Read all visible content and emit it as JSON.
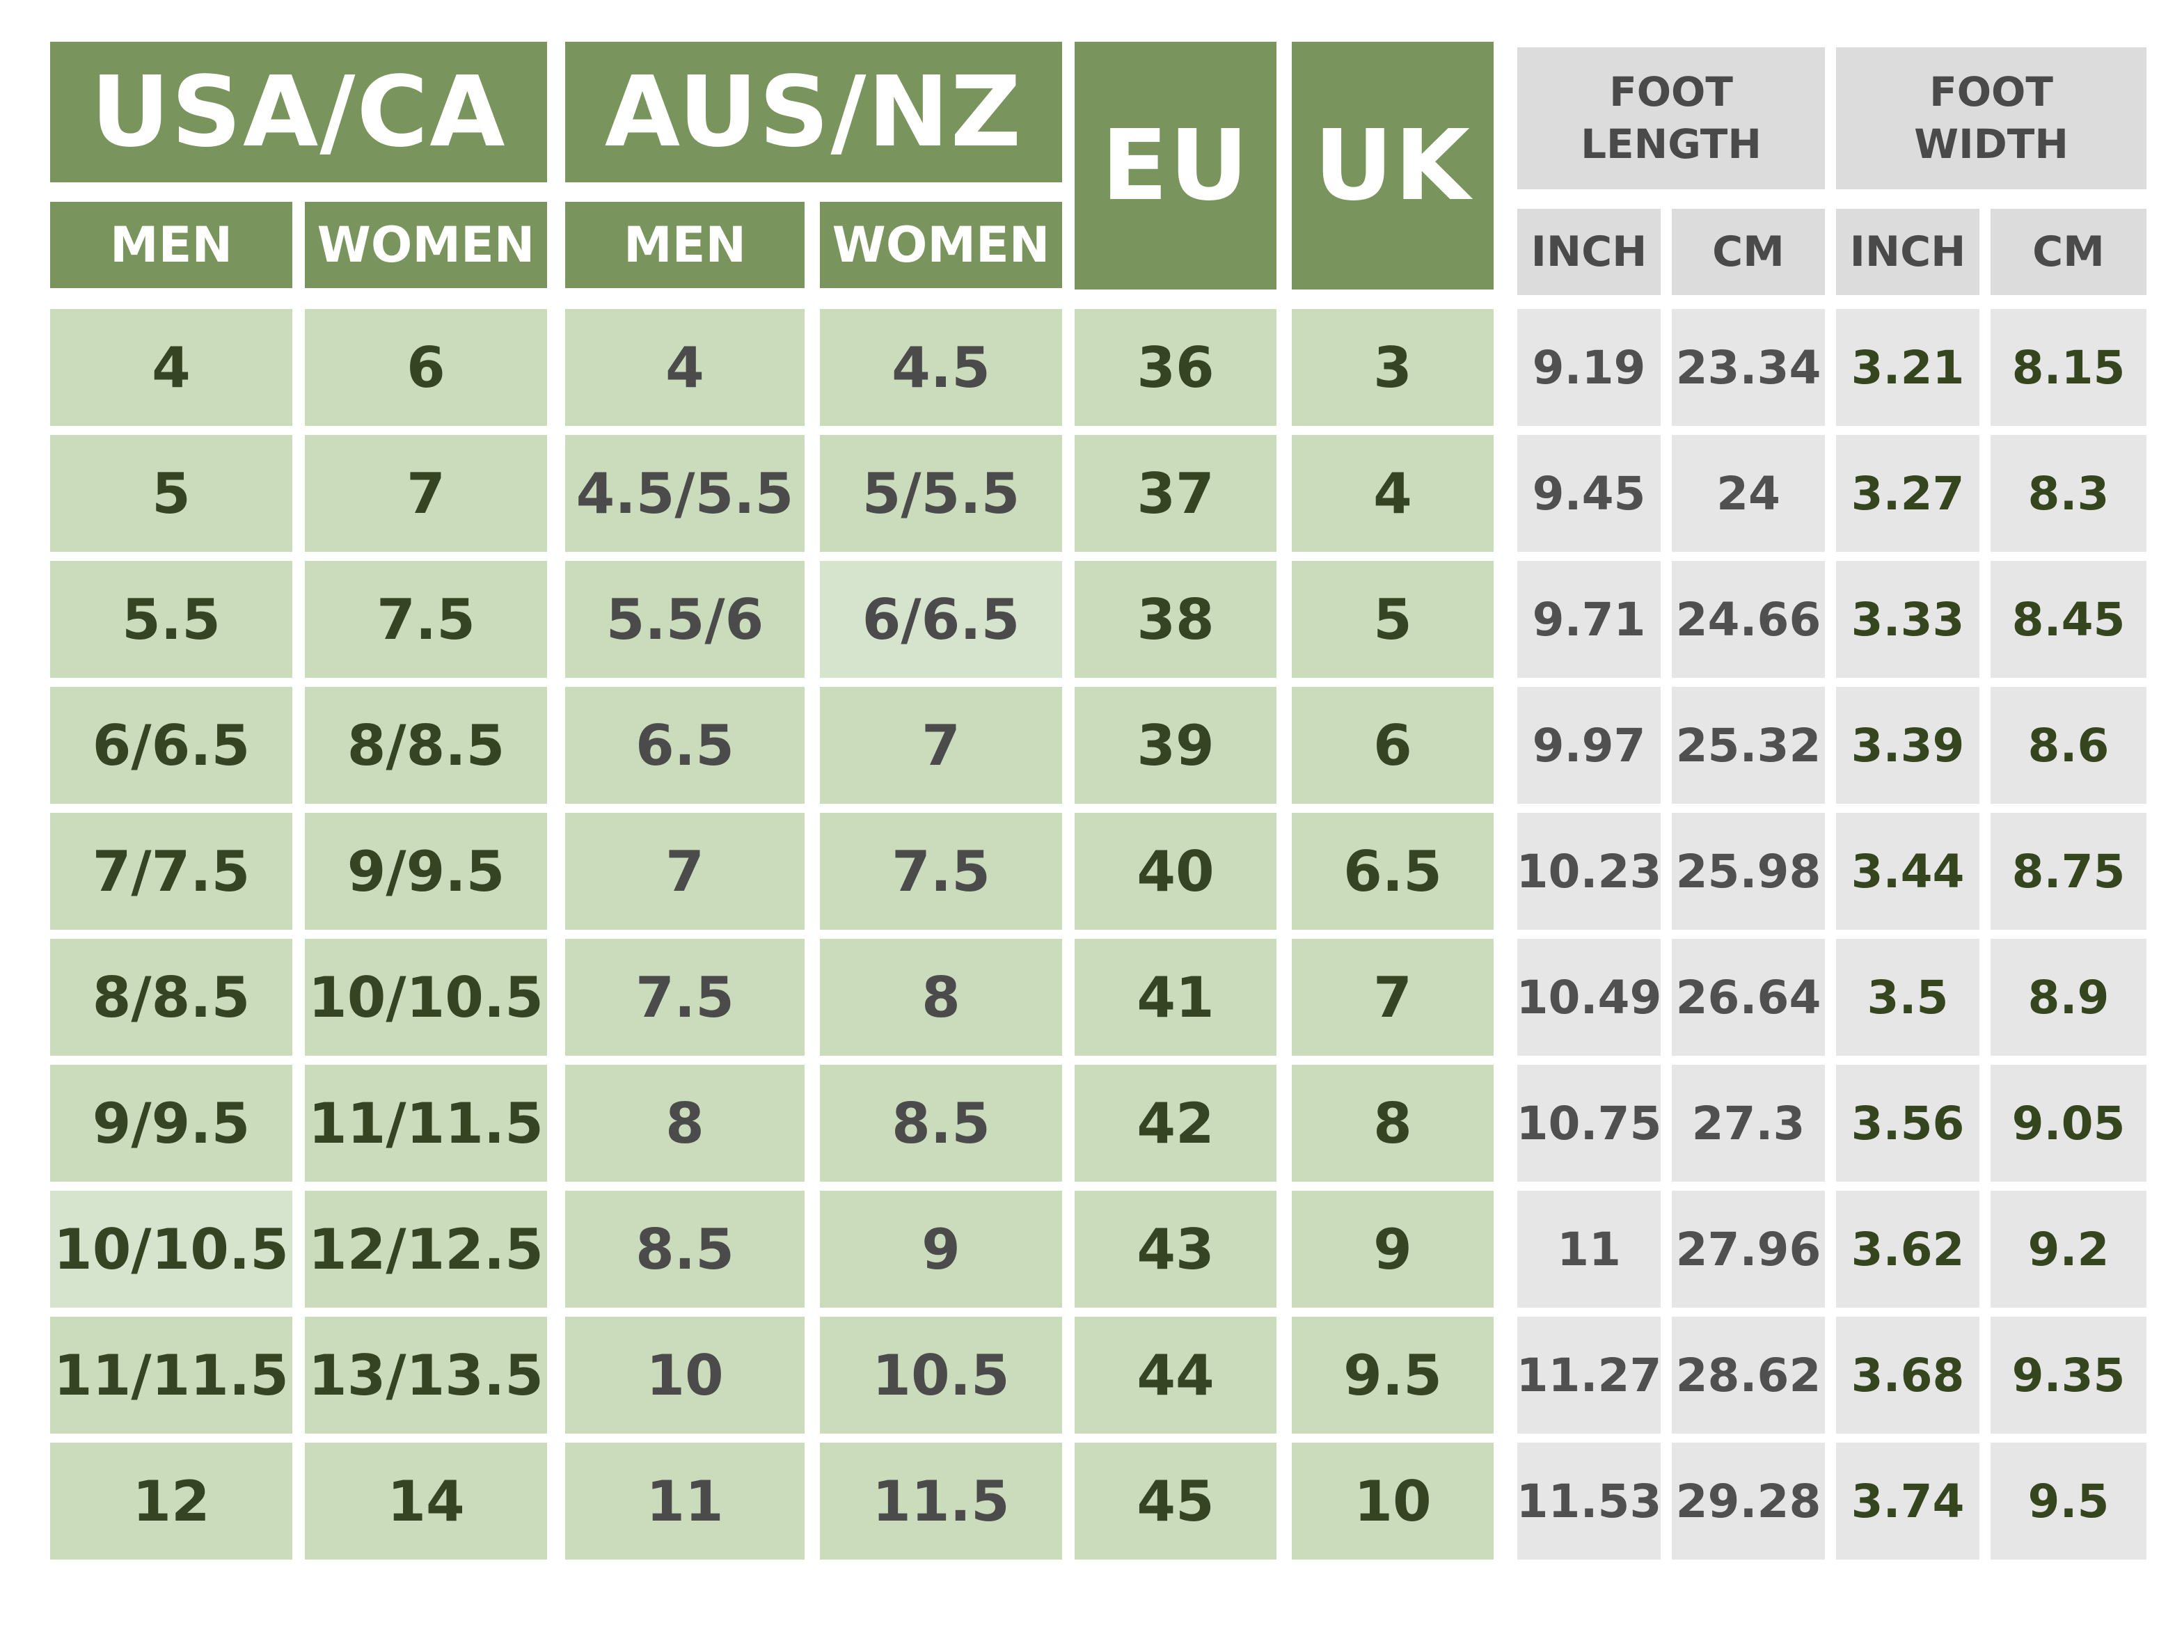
{
  "headers": {
    "usa_ca": "USA/CA",
    "aus_nz": "AUS/NZ",
    "eu": "EU",
    "uk": "UK",
    "men": "MEN",
    "women": "WOMEN",
    "foot_length": "FOOT LENGTH",
    "foot_width": "FOOT WIDTH",
    "inch": "INCH",
    "cm": "CM"
  },
  "rows": [
    {
      "us_men": "4",
      "us_women": "6",
      "aus_men": "4",
      "aus_women": "4.5",
      "eu": "36",
      "uk": "3",
      "len_in": "9.19",
      "len_cm": "23.34",
      "wid_in": "3.21",
      "wid_cm": "8.15"
    },
    {
      "us_men": "5",
      "us_women": "7",
      "aus_men": "4.5/5.5",
      "aus_women": "5/5.5",
      "eu": "37",
      "uk": "4",
      "len_in": "9.45",
      "len_cm": "24",
      "wid_in": "3.27",
      "wid_cm": "8.3"
    },
    {
      "us_men": "5.5",
      "us_women": "7.5",
      "aus_men": "5.5/6",
      "aus_women": "6/6.5",
      "eu": "38",
      "uk": "5",
      "len_in": "9.71",
      "len_cm": "24.66",
      "wid_in": "3.33",
      "wid_cm": "8.45"
    },
    {
      "us_men": "6/6.5",
      "us_women": "8/8.5",
      "aus_men": "6.5",
      "aus_women": "7",
      "eu": "39",
      "uk": "6",
      "len_in": "9.97",
      "len_cm": "25.32",
      "wid_in": "3.39",
      "wid_cm": "8.6"
    },
    {
      "us_men": "7/7.5",
      "us_women": "9/9.5",
      "aus_men": "7",
      "aus_women": "7.5",
      "eu": "40",
      "uk": "6.5",
      "len_in": "10.23",
      "len_cm": "25.98",
      "wid_in": "3.44",
      "wid_cm": "8.75"
    },
    {
      "us_men": "8/8.5",
      "us_women": "10/10.5",
      "aus_men": "7.5",
      "aus_women": "8",
      "eu": "41",
      "uk": "7",
      "len_in": "10.49",
      "len_cm": "26.64",
      "wid_in": "3.5",
      "wid_cm": "8.9"
    },
    {
      "us_men": "9/9.5",
      "us_women": "11/11.5",
      "aus_men": "8",
      "aus_women": "8.5",
      "eu": "42",
      "uk": "8",
      "len_in": "10.75",
      "len_cm": "27.3",
      "wid_in": "3.56",
      "wid_cm": "9.05"
    },
    {
      "us_men": "10/10.5",
      "us_women": "12/12.5",
      "aus_men": "8.5",
      "aus_women": "9",
      "eu": "43",
      "uk": "9",
      "len_in": "11",
      "len_cm": "27.96",
      "wid_in": "3.62",
      "wid_cm": "9.2"
    },
    {
      "us_men": "11/11.5",
      "us_women": "13/13.5",
      "aus_men": "10",
      "aus_women": "10.5",
      "eu": "44",
      "uk": "9.5",
      "len_in": "11.27",
      "len_cm": "28.62",
      "wid_in": "3.68",
      "wid_cm": "9.35"
    },
    {
      "us_men": "12",
      "us_women": "14",
      "aus_men": "11",
      "aus_women": "11.5",
      "eu": "45",
      "uk": "10",
      "len_in": "11.53",
      "len_cm": "29.28",
      "wid_in": "3.74",
      "wid_cm": "9.5"
    }
  ]
}
